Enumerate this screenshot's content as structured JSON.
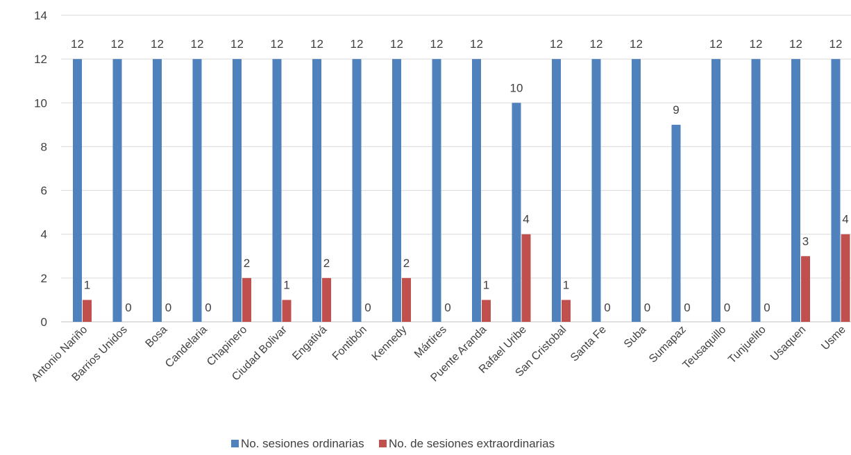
{
  "chart_data": {
    "type": "bar",
    "categories": [
      "Antonio Nariño",
      "Barrios Unidos",
      "Bosa",
      "Candelaria",
      "Chapinero",
      "Ciudad Bolivar",
      "Engativá",
      "Fontibón",
      "Kennedy",
      "Mártires",
      "Puente Aranda",
      "Rafael Uribe",
      "San Cristobal",
      "Santa Fe",
      "Suba",
      "Sumapaz",
      "Teusaquillo",
      "Tunjuelito",
      "Usaquen",
      "Usme"
    ],
    "series": [
      {
        "name": "No. sesiones ordinarias",
        "color": "#4f81bd",
        "values": [
          12,
          12,
          12,
          12,
          12,
          12,
          12,
          12,
          12,
          12,
          12,
          10,
          12,
          12,
          12,
          9,
          12,
          12,
          12,
          12
        ]
      },
      {
        "name": "No. de sesiones extraordinarias",
        "color": "#c0504d",
        "values": [
          1,
          0,
          0,
          0,
          2,
          1,
          2,
          0,
          2,
          0,
          1,
          4,
          1,
          0,
          0,
          0,
          0,
          0,
          3,
          4
        ]
      }
    ],
    "yticks": [
      0,
      2,
      4,
      6,
      8,
      10,
      12,
      14
    ],
    "ylim": [
      0,
      14
    ],
    "grid": true,
    "legend": "bottom",
    "data_labels": true
  }
}
